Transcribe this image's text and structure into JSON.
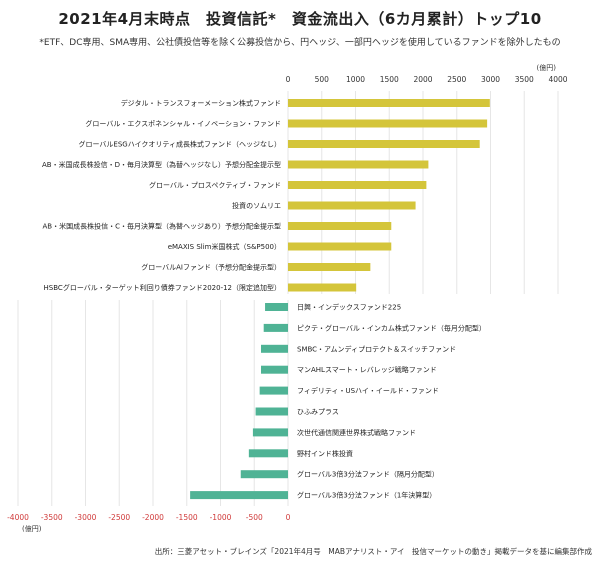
{
  "title": "2021年4月末時点　投資信託*　資金流出入（6カ月累計）トップ10",
  "subtitle": "*ETF、DC専用、SMA専用、公社債投信等を除く公募投信から、円ヘッジ、一部円ヘッジを使用しているファンドを除外したもの",
  "source": "出所：三菱アセット・ブレインズ「2021年4月号　MABアナリスト・アイ　投信マーケットの動き」掲載データを基に編集部作成",
  "colors": {
    "inflow": "#d4c53a",
    "outflow": "#4fb395"
  },
  "chart_data": [
    {
      "type": "bar",
      "orientation": "horizontal",
      "unit_label": "(億円)",
      "xlim": [
        0,
        4000
      ],
      "ticks": [
        0,
        500,
        1000,
        1500,
        2000,
        2500,
        3000,
        3500,
        4000
      ],
      "grid": true,
      "categories": [
        "デジタル・トランスフォーメーション株式ファンド",
        "グローバル・エクスポネンシャル・イノベーション・ファンド",
        "グローバルESGハイクオリティ成長株式ファンド（ヘッジなし）",
        "AB・米国成長株投信・D・毎月決算型（為替ヘッジなし）予想分配金提示型",
        "グローバル・プロスペクティブ・ファンド",
        "投資のソムリエ",
        "AB・米国成長株投信・C・毎月決算型（為替ヘッジあり）予想分配金提示型",
        "eMAXIS Slim米国株式（S&P500）",
        "グローバルAIファンド（予想分配金提示型）",
        "HSBCグローバル・ターゲット利回り債券ファンド2020-12（限定追加型）"
      ],
      "values": [
        2990,
        2950,
        2840,
        2080,
        2050,
        1890,
        1530,
        1530,
        1220,
        1010
      ]
    },
    {
      "type": "bar",
      "orientation": "horizontal",
      "unit_label": "(億円)",
      "xlim": [
        -4000,
        0
      ],
      "ticks": [
        -4000,
        -3500,
        -3000,
        -2500,
        -2000,
        -1500,
        -1000,
        -500,
        0
      ],
      "grid": true,
      "categories": [
        "日興・インデックスファンド225",
        "ピクテ・グローバル・インカム株式ファンド（毎月分配型）",
        "SMBC・アムンディプロテクト＆スイッチファンド",
        "マンAHLスマート・レバレッジ戦略ファンド",
        "フィデリティ・USハイ・イールド・ファンド",
        "ひふみプラス",
        "次世代通信関連世界株式戦略ファンド",
        "野村インド株投資",
        "グローバル3倍3分法ファンド（隔月分配型）",
        "グローバル3倍3分法ファンド（1年決算型）"
      ],
      "values": [
        -340,
        -360,
        -400,
        -400,
        -420,
        -480,
        -520,
        -580,
        -700,
        -1450
      ]
    }
  ]
}
